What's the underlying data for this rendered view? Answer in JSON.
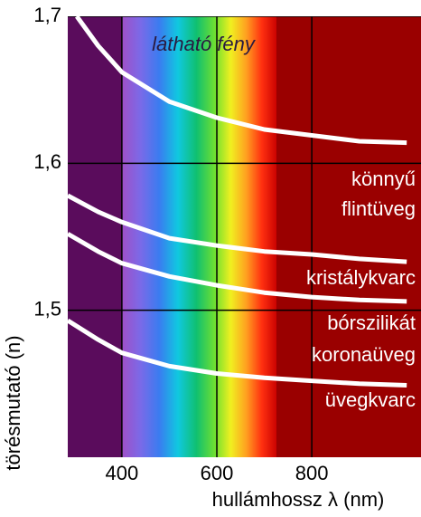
{
  "chart_data": {
    "type": "line",
    "annotation": "látható fény",
    "xlabel": "hullámhossz λ (nm)",
    "ylabel": "törésmutató (n)",
    "xlim": [
      286,
      1030
    ],
    "ylim": [
      1.4,
      1.7
    ],
    "xticks": [
      400,
      600,
      800
    ],
    "yticks": [
      {
        "value": 1.7,
        "label": "1,7"
      },
      {
        "value": 1.6,
        "label": "1,6"
      },
      {
        "value": 1.5,
        "label": "1,5"
      }
    ],
    "grid": true,
    "series": [
      {
        "name": "könnyű flintüveg",
        "color": "#ffffff",
        "x": [
          305,
          350,
          400,
          500,
          600,
          700,
          800,
          900,
          1000
        ],
        "values": [
          1.7,
          1.68,
          1.662,
          1.642,
          1.631,
          1.623,
          1.619,
          1.615,
          1.614
        ]
      },
      {
        "name": "kristálykvarc",
        "color": "#ffffff",
        "x": [
          286,
          350,
          400,
          500,
          600,
          700,
          800,
          900,
          1000
        ],
        "values": [
          1.578,
          1.567,
          1.56,
          1.549,
          1.544,
          1.54,
          1.538,
          1.535,
          1.533
        ]
      },
      {
        "name": "bórszilikát koronaüveg",
        "color": "#ffffff",
        "x": [
          286,
          350,
          400,
          500,
          600,
          700,
          800,
          900,
          1000
        ],
        "values": [
          1.552,
          1.54,
          1.532,
          1.523,
          1.517,
          1.512,
          1.509,
          1.507,
          1.506
        ]
      },
      {
        "name": "üvegkvarc",
        "color": "#ffffff",
        "x": [
          286,
          350,
          400,
          500,
          600,
          700,
          800,
          900,
          1000
        ],
        "values": [
          1.493,
          1.48,
          1.471,
          1.462,
          1.457,
          1.454,
          1.452,
          1.45,
          1.449
        ]
      }
    ]
  }
}
